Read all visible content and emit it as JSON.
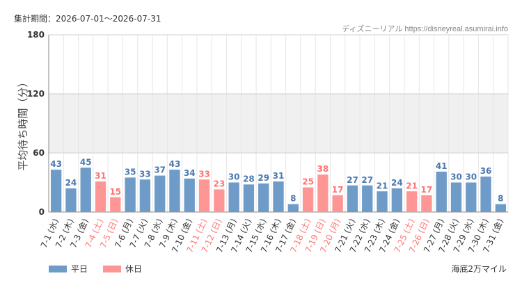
{
  "header": {
    "period_label": "集計期間：2026-07-01〜2026-07-31",
    "credit": "ディズニーリアル https://disneyreal.asumirai.info"
  },
  "attraction_name": "海底2万マイル",
  "colors": {
    "weekday": "#6f9bc9",
    "holiday": "#ff9696",
    "weekday_text": "#4a78b0",
    "holiday_text": "#ff7373",
    "band": "#f0f0f0",
    "grid": "#e6e6e6"
  },
  "chart_data": {
    "type": "bar",
    "ylabel": "平均待ち時間（分）",
    "ylim": [
      0,
      180
    ],
    "yticks": [
      0,
      60,
      120,
      180
    ],
    "highlight_band": [
      60,
      120
    ],
    "categories": [
      "7-1 (水)",
      "7-2 (木)",
      "7-3 (金)",
      "7-4 (土)",
      "7-5 (日)",
      "7-6 (月)",
      "7-7 (火)",
      "7-8 (水)",
      "7-9 (木)",
      "7-10 (金)",
      "7-11 (土)",
      "7-12 (日)",
      "7-13 (月)",
      "7-14 (火)",
      "7-15 (水)",
      "7-16 (木)",
      "7-17 (金)",
      "7-18 (土)",
      "7-19 (日)",
      "7-20 (月)",
      "7-21 (火)",
      "7-22 (水)",
      "7-23 (木)",
      "7-24 (金)",
      "7-25 (土)",
      "7-26 (日)",
      "7-27 (月)",
      "7-28 (火)",
      "7-29 (水)",
      "7-30 (木)",
      "7-31 (金)"
    ],
    "values": [
      43,
      24,
      45,
      31,
      15,
      35,
      33,
      37,
      43,
      34,
      33,
      23,
      30,
      28,
      29,
      31,
      8,
      25,
      38,
      17,
      27,
      27,
      21,
      24,
      21,
      17,
      41,
      30,
      30,
      36,
      8
    ],
    "day_type": [
      "平日",
      "平日",
      "平日",
      "休日",
      "休日",
      "平日",
      "平日",
      "平日",
      "平日",
      "平日",
      "休日",
      "休日",
      "平日",
      "平日",
      "平日",
      "平日",
      "平日",
      "休日",
      "休日",
      "休日",
      "平日",
      "平日",
      "平日",
      "平日",
      "休日",
      "休日",
      "平日",
      "平日",
      "平日",
      "平日",
      "平日"
    ],
    "legend": [
      {
        "name": "平日",
        "key": "weekday"
      },
      {
        "name": "休日",
        "key": "holiday"
      }
    ]
  }
}
